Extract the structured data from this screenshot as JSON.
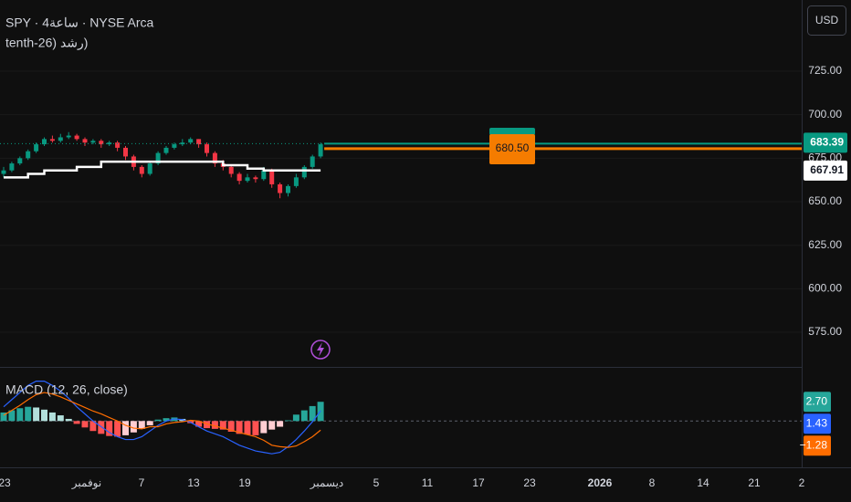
{
  "header": {
    "symbol_line": "SPY · 4ساعة · NYSE Arca",
    "indicator_line": "tenth-26) رشد)",
    "currency": "USD"
  },
  "chart_data": [
    {
      "type": "candlestick",
      "up_color": "#089981",
      "down_color": "#f23645",
      "ylim": [
        555.1,
        765.9
      ],
      "yticks": [
        {
          "value": 575,
          "label": "575.00"
        },
        {
          "value": 600,
          "label": "600.00"
        },
        {
          "value": 625,
          "label": "625.00"
        },
        {
          "value": 650,
          "label": "650.00"
        },
        {
          "value": 675,
          "label": "675.00"
        },
        {
          "value": 700,
          "label": "700.00"
        },
        {
          "value": 725,
          "label": "725.00"
        }
      ],
      "candles": [
        [
          666,
          670,
          664,
          668
        ],
        [
          668,
          673,
          667,
          672
        ],
        [
          672,
          676,
          671,
          675
        ],
        [
          675,
          680,
          674,
          679
        ],
        [
          679,
          684,
          678,
          683
        ],
        [
          683,
          687,
          682,
          686
        ],
        [
          686,
          688,
          684,
          685
        ],
        [
          685,
          689,
          684,
          687
        ],
        [
          687,
          690,
          686,
          688
        ],
        [
          688,
          689,
          685,
          686
        ],
        [
          686,
          687,
          682,
          684
        ],
        [
          684,
          686,
          683,
          685
        ],
        [
          685,
          686,
          681,
          683
        ],
        [
          683,
          685,
          682,
          684
        ],
        [
          684,
          685,
          679,
          681
        ],
        [
          681,
          682,
          674,
          676
        ],
        [
          676,
          677,
          668,
          670
        ],
        [
          670,
          671,
          664,
          666
        ],
        [
          666,
          673,
          665,
          672
        ],
        [
          672,
          679,
          671,
          678
        ],
        [
          678,
          682,
          677,
          681
        ],
        [
          681,
          684,
          680,
          683
        ],
        [
          683,
          686,
          682,
          684
        ],
        [
          684,
          687,
          683,
          686
        ],
        [
          686,
          686,
          681,
          683
        ],
        [
          683,
          684,
          676,
          678
        ],
        [
          678,
          679,
          670,
          672
        ],
        [
          672,
          674,
          668,
          670
        ],
        [
          670,
          671,
          664,
          666
        ],
        [
          666,
          667,
          660,
          662
        ],
        [
          662,
          666,
          661,
          664
        ],
        [
          664,
          665,
          661,
          663
        ],
        [
          663,
          670,
          662,
          668
        ],
        [
          668,
          669,
          658,
          660
        ],
        [
          660,
          661,
          652,
          655
        ],
        [
          655,
          660,
          653,
          659
        ],
        [
          659,
          666,
          658,
          664
        ],
        [
          664,
          671,
          663,
          670
        ],
        [
          670,
          677,
          669,
          676
        ],
        [
          676,
          684,
          675,
          683
        ]
      ],
      "series": [
        {
          "color": "#ffffff",
          "values": [
            664,
            664,
            664,
            666,
            666,
            668,
            668,
            668,
            668,
            670,
            670,
            670,
            673,
            673,
            673,
            673,
            673,
            673,
            673,
            673,
            673,
            673,
            673,
            673,
            673,
            673,
            673,
            671,
            671,
            671,
            669,
            669,
            668,
            668,
            668,
            668,
            668,
            668,
            668,
            668
          ]
        }
      ],
      "price_lines": [
        {
          "value": 683.39,
          "label": "683.39",
          "color": "#089981"
        },
        {
          "value": 680.5,
          "label": "680.50",
          "color": "#f57c00"
        },
        {
          "value": 667.91,
          "label": "667.91",
          "color": "#ffffff"
        }
      ]
    },
    {
      "type": "macd",
      "title": "MACD (12, 26, close)",
      "ylim": [
        -6.5,
        7.6
      ],
      "histogram": [
        1.2,
        1.5,
        1.8,
        2.0,
        1.9,
        1.6,
        1.2,
        0.8,
        0.3,
        -0.4,
        -0.9,
        -1.4,
        -1.8,
        -2.1,
        -2.2,
        -2.0,
        -1.6,
        -1.1,
        -0.6,
        0.2,
        0.4,
        0.5,
        0.3,
        -0.3,
        -0.8,
        -1.0,
        -1.1,
        -1.2,
        -1.5,
        -1.8,
        -1.9,
        -2.0,
        -1.7,
        -1.2,
        -0.8,
        0.1,
        0.9,
        1.5,
        2.1,
        2.7
      ],
      "series": [
        {
          "color": "#2962ff",
          "values": [
            2.0,
            3.0,
            4.0,
            5.0,
            5.6,
            5.6,
            5.0,
            4.2,
            3.2,
            2.0,
            1.0,
            0.0,
            -0.8,
            -1.6,
            -2.2,
            -2.6,
            -2.6,
            -2.2,
            -1.4,
            -0.6,
            0.0,
            0.3,
            0.2,
            -0.2,
            -0.8,
            -1.4,
            -1.8,
            -2.2,
            -2.8,
            -3.4,
            -3.8,
            -4.2,
            -4.4,
            -4.6,
            -4.4,
            -3.6,
            -2.6,
            -1.4,
            -0.1,
            1.43
          ]
        },
        {
          "color": "#ff6d00",
          "values": [
            0.8,
            1.5,
            2.2,
            3.0,
            3.7,
            4.0,
            3.8,
            3.4,
            2.9,
            2.4,
            1.9,
            1.4,
            1.0,
            0.5,
            0.0,
            -0.6,
            -1.0,
            -1.1,
            -0.8,
            -0.8,
            -0.4,
            -0.2,
            -0.1,
            0.1,
            0.0,
            -0.4,
            -0.7,
            -1.0,
            -1.3,
            -1.6,
            -1.9,
            -2.2,
            -2.7,
            -3.4,
            -3.6,
            -3.7,
            -3.5,
            -2.9,
            -2.2,
            -1.28
          ]
        }
      ],
      "last_labels": [
        {
          "value": 2.7,
          "label": "2.70",
          "color": "#26a69a"
        },
        {
          "value": 1.43,
          "label": "1.43",
          "color": "#2962ff"
        },
        {
          "value": -1.28,
          "label": "−1.28",
          "color": "#ff6d00"
        }
      ]
    }
  ],
  "x_axis": {
    "labels": [
      "23",
      "نوفمبر",
      "7",
      "13",
      "19",
      "ديسمبر",
      "5",
      "11",
      "17",
      "23",
      "2026",
      "8",
      "14",
      "21",
      "2"
    ]
  }
}
